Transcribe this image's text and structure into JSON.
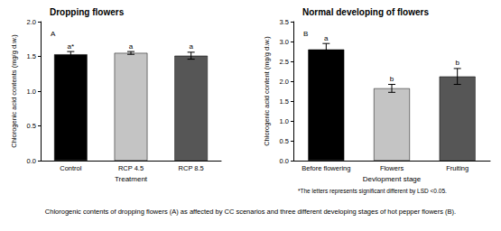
{
  "chart_data": [
    {
      "type": "bar",
      "title": "Dropping flowers",
      "panel_label": "A",
      "x_label": "Treatment",
      "y_label": "Chlorogenic acid contents (mg/g d.w.)",
      "categories": [
        "Control",
        "RCP 4.5",
        "RCP 8.5"
      ],
      "values": [
        1.53,
        1.55,
        1.51
      ],
      "errors": [
        0.04,
        0.02,
        0.05
      ],
      "letters": [
        "a*",
        "a",
        "a"
      ],
      "colors": [
        "#000000",
        "#c4c4c4",
        "#565656"
      ],
      "ylim": [
        0,
        2
      ],
      "yticks": [
        {
          "value": 0,
          "label": "0.0"
        },
        0.5,
        {
          "value": 1,
          "label": "1.0"
        },
        1.5,
        {
          "value": 2,
          "label": "2.0"
        }
      ],
      "grid": false
    },
    {
      "type": "bar",
      "title": "Normal developing of flowers",
      "panel_label": "B",
      "x_label": "Devlopment stage",
      "y_label": "Chlorogenic acid content (mg/g d.w.)",
      "categories": [
        "Before flowering",
        "Flowers",
        "Fruiting"
      ],
      "values": [
        2.8,
        1.82,
        2.12
      ],
      "errors": [
        0.15,
        0.1,
        0.2
      ],
      "letters": [
        "a",
        "b",
        "b"
      ],
      "colors": [
        "#000000",
        "#c4c4c4",
        "#565656"
      ],
      "ylim": [
        0,
        3.5
      ],
      "yticks": [
        {
          "value": 0,
          "label": "0.0"
        },
        0.5,
        {
          "value": 1,
          "label": "1.0"
        },
        1.5,
        {
          "value": 2,
          "label": "2.0"
        },
        2.5,
        {
          "value": 3,
          "label": "3.0"
        },
        3.5
      ],
      "grid": false
    }
  ],
  "footnote": "*The letters represents significant different by LSD <0.05.",
  "caption": "Chlorogenic contents of dropping flowers (A) as affected by CC scenarios and three different developing stages of hot pepper flowers (B)."
}
